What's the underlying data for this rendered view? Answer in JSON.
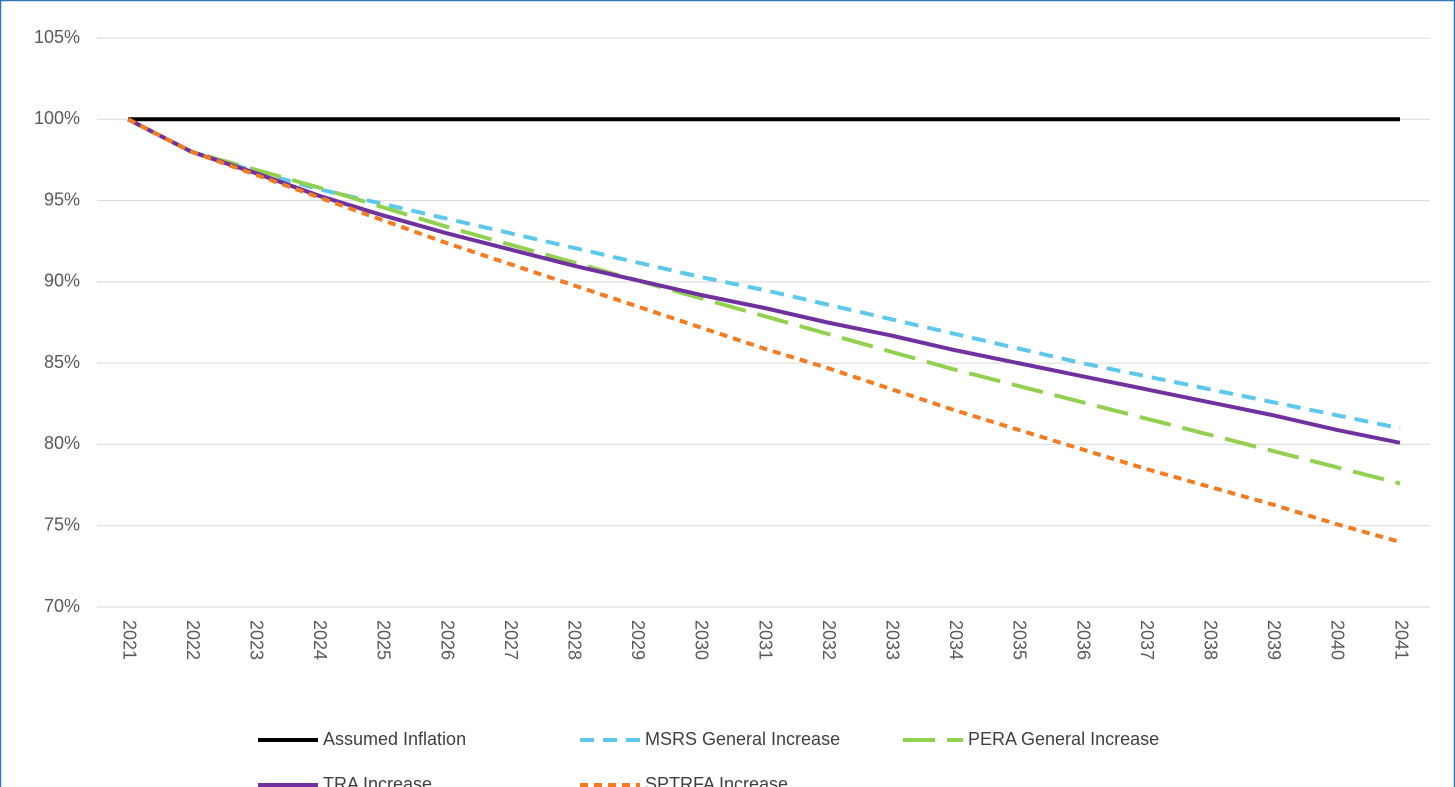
{
  "chart_data": {
    "type": "line",
    "categories": [
      "2021",
      "2022",
      "2023",
      "2024",
      "2025",
      "2026",
      "2027",
      "2028",
      "2029",
      "2030",
      "2031",
      "2032",
      "2033",
      "2034",
      "2035",
      "2036",
      "2037",
      "2038",
      "2039",
      "2040",
      "2041"
    ],
    "series": [
      {
        "name": "Assumed Inflation",
        "color": "#000000",
        "dash": "solid",
        "values": [
          100,
          100,
          100,
          100,
          100,
          100,
          100,
          100,
          100,
          100,
          100,
          100,
          100,
          100,
          100,
          100,
          100,
          100,
          100,
          100,
          100
        ]
      },
      {
        "name": "MSRS General Increase",
        "color": "#5bc8ec",
        "dash": "dashed",
        "values": [
          100,
          98.0,
          96.8,
          95.7,
          94.8,
          93.9,
          93.0,
          92.1,
          91.2,
          90.3,
          89.5,
          88.6,
          87.7,
          86.8,
          85.9,
          85.0,
          84.2,
          83.4,
          82.6,
          81.8,
          81.0
        ]
      },
      {
        "name": "PERA General Increase",
        "color": "#92d050",
        "dash": "long-dash",
        "values": [
          100,
          98.0,
          96.9,
          95.8,
          94.6,
          93.4,
          92.3,
          91.2,
          90.1,
          89.0,
          87.9,
          86.8,
          85.7,
          84.6,
          83.6,
          82.6,
          81.6,
          80.6,
          79.6,
          78.6,
          77.6
        ]
      },
      {
        "name": "TRA Increase",
        "color": "#7030a0",
        "dash": "solid",
        "values": [
          100,
          98.0,
          96.7,
          95.3,
          94.1,
          93.0,
          92.0,
          91.0,
          90.1,
          89.2,
          88.4,
          87.5,
          86.7,
          85.8,
          85.0,
          84.2,
          83.4,
          82.6,
          81.8,
          80.9,
          80.1
        ]
      },
      {
        "name": "SPTRFA Increase",
        "color": "#f47b20",
        "dash": "dotted",
        "values": [
          100,
          98.0,
          96.6,
          95.2,
          93.8,
          92.4,
          91.1,
          89.8,
          88.5,
          87.2,
          85.9,
          84.7,
          83.4,
          82.1,
          80.9,
          79.7,
          78.5,
          77.4,
          76.3,
          75.1,
          74.0
        ]
      }
    ],
    "ylim": [
      70,
      105
    ],
    "yticks": [
      {
        "value": 70,
        "label": "70%"
      },
      {
        "value": 75,
        "label": "75%"
      },
      {
        "value": 80,
        "label": "80%"
      },
      {
        "value": 85,
        "label": "85%"
      },
      {
        "value": 90,
        "label": "90%"
      },
      {
        "value": 95,
        "label": "95%"
      },
      {
        "value": 100,
        "label": "100%"
      },
      {
        "value": 105,
        "label": "105%"
      }
    ],
    "grid": true,
    "legend": "bottom"
  }
}
